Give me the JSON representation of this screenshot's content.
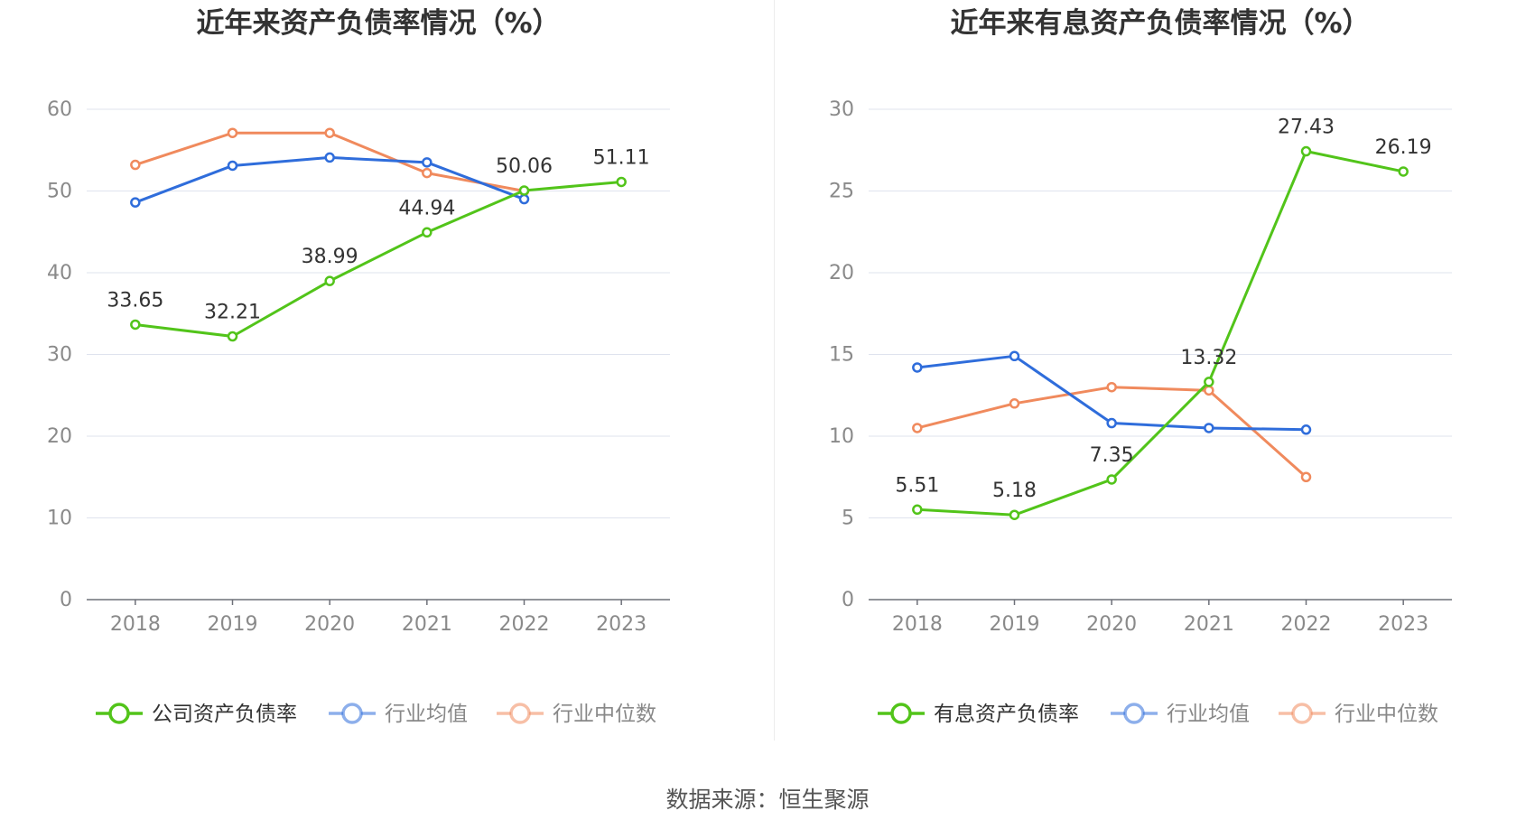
{
  "chart_data": [
    {
      "type": "line",
      "title": "近年来资产负债率情况（%）",
      "categories": [
        "2018",
        "2019",
        "2020",
        "2021",
        "2022",
        "2023"
      ],
      "ylim": [
        0,
        60
      ],
      "yticks": [
        0,
        10,
        20,
        30,
        40,
        50,
        60
      ],
      "grid": true,
      "legend_position": "bottom",
      "series": [
        {
          "name": "公司资产负债率",
          "color": "#52c41a",
          "values": [
            33.65,
            32.21,
            38.99,
            44.94,
            50.06,
            51.11
          ],
          "labels": [
            "33.65",
            "32.21",
            "38.99",
            "44.94",
            "50.06",
            "51.11"
          ]
        },
        {
          "name": "行业均值",
          "color": "#2f6ddb",
          "values": [
            48.6,
            53.1,
            54.1,
            53.5,
            49.0,
            null
          ],
          "labels": []
        },
        {
          "name": "行业中位数",
          "color": "#f08a5d",
          "values": [
            53.2,
            57.1,
            57.1,
            52.2,
            50.0,
            null
          ],
          "labels": []
        }
      ]
    },
    {
      "type": "line",
      "title": "近年来有息资产负债率情况（%）",
      "categories": [
        "2018",
        "2019",
        "2020",
        "2021",
        "2022",
        "2023"
      ],
      "ylim": [
        0,
        30
      ],
      "yticks": [
        0,
        5,
        10,
        15,
        20,
        25,
        30
      ],
      "grid": true,
      "legend_position": "bottom",
      "series": [
        {
          "name": "有息资产负债率",
          "color": "#52c41a",
          "values": [
            5.51,
            5.18,
            7.35,
            13.32,
            27.43,
            26.19
          ],
          "labels": [
            "5.51",
            "5.18",
            "7.35",
            "13.32",
            "27.43",
            "26.19"
          ]
        },
        {
          "name": "行业均值",
          "color": "#2f6ddb",
          "values": [
            14.2,
            14.9,
            10.8,
            10.5,
            10.4,
            null
          ],
          "labels": []
        },
        {
          "name": "行业中位数",
          "color": "#f08a5d",
          "values": [
            10.5,
            12.0,
            13.0,
            12.8,
            7.5,
            null
          ],
          "labels": []
        }
      ]
    }
  ],
  "legend_styles": {
    "active_text": "#333333",
    "inactive_text": "#888888"
  },
  "source": "数据来源：恒生聚源"
}
